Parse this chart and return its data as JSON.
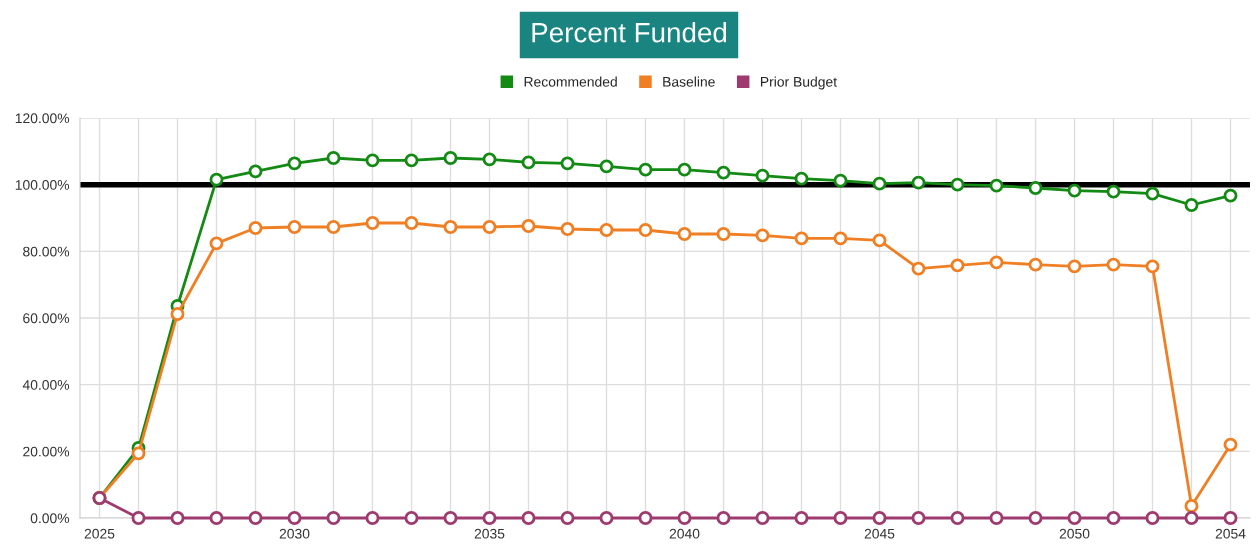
{
  "chart_data": {
    "type": "line",
    "title": "Percent Funded",
    "x": [
      2025,
      2026,
      2027,
      2028,
      2029,
      2030,
      2031,
      2032,
      2033,
      2034,
      2035,
      2036,
      2037,
      2038,
      2039,
      2040,
      2041,
      2042,
      2043,
      2044,
      2045,
      2046,
      2047,
      2048,
      2049,
      2050,
      2051,
      2052,
      2053,
      2054
    ],
    "series": [
      {
        "name": "Recommended",
        "color": "#138a13",
        "values": [
          6,
          21,
          63.6,
          101.5,
          104,
          106.4,
          108,
          107.3,
          107.3,
          108,
          107.6,
          106.7,
          106.4,
          105.5,
          104.5,
          104.5,
          103.6,
          102.7,
          101.8,
          101.2,
          100.3,
          100.6,
          100,
          99.7,
          99,
          98.2,
          97.9,
          97.3,
          93.9,
          96.7
        ]
      },
      {
        "name": "Baseline",
        "color": "#f07f24",
        "values": [
          6,
          19.4,
          61.2,
          82.4,
          87,
          87.3,
          87.3,
          88.5,
          88.5,
          87.3,
          87.3,
          87.6,
          86.7,
          86.4,
          86.4,
          85.2,
          85.2,
          84.8,
          83.9,
          83.9,
          83.3,
          74.8,
          75.8,
          76.7,
          76,
          75.5,
          76,
          75.5,
          3.6,
          22
        ]
      },
      {
        "name": "Prior Budget",
        "color": "#9e3a6e",
        "values": [
          6,
          0,
          0,
          0,
          0,
          0,
          0,
          0,
          0,
          0,
          0,
          0,
          0,
          0,
          0,
          0,
          0,
          0,
          0,
          0,
          0,
          0,
          0,
          0,
          0,
          0,
          0,
          0,
          0,
          0
        ]
      }
    ],
    "xlim": [
      2024.5,
      2054.5
    ],
    "xticks": [
      2025,
      2030,
      2035,
      2040,
      2045,
      2050,
      2054
    ],
    "ylim": [
      0,
      120
    ],
    "yticks": [
      {
        "value": 0,
        "label": "0.00%"
      },
      {
        "value": 20,
        "label": "20.00%"
      },
      {
        "value": 40,
        "label": "40.00%"
      },
      {
        "value": 60,
        "label": "60.00%"
      },
      {
        "value": 80,
        "label": "80.00%"
      },
      {
        "value": 100,
        "label": "100.00%"
      },
      {
        "value": 120,
        "label": "120.00%"
      }
    ],
    "ref_lines": [
      {
        "axis": "y",
        "value": 100,
        "color": "#000000"
      }
    ],
    "grid": true,
    "legend": "top",
    "marker": "circle",
    "line_style": "solid"
  }
}
